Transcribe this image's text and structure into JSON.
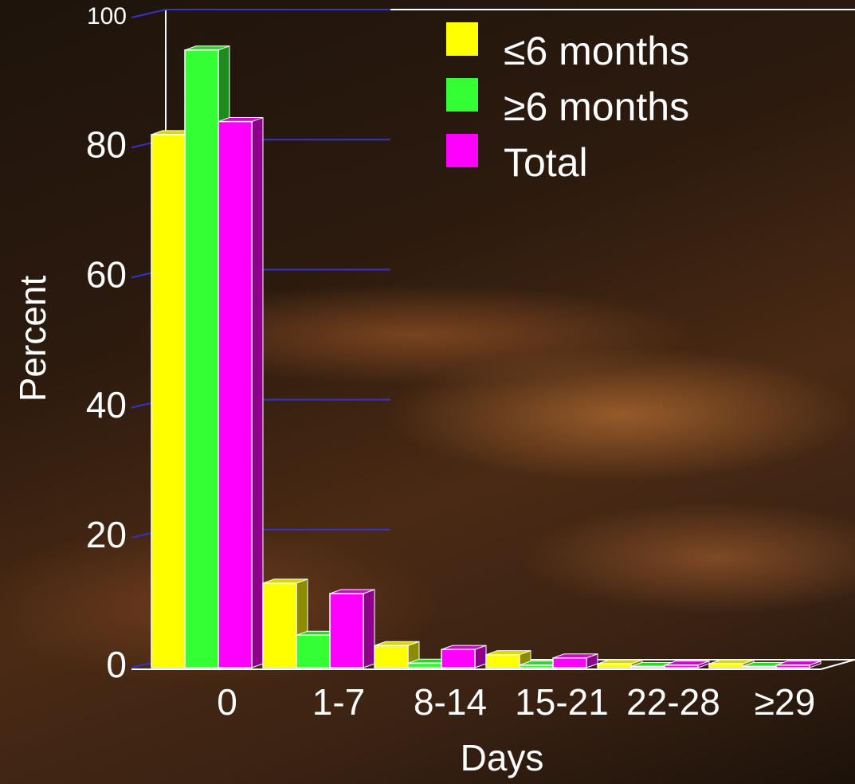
{
  "chart_data": {
    "type": "bar3d",
    "x_label": "Days",
    "y_label": "Percent",
    "categories": [
      "0",
      "1-7",
      "8-14",
      "15-21",
      "22-28",
      "≥29"
    ],
    "series": [
      {
        "name": "≤6 months",
        "color": "#ffff00",
        "values": [
          82,
          13,
          3.4,
          2,
          0.6,
          0.6
        ]
      },
      {
        "name": "≥6 months",
        "color": "#33ff33",
        "values": [
          95,
          5,
          0.7,
          0.4,
          0.2,
          0.2
        ]
      },
      {
        "name": "Total",
        "color": "#ff00ff",
        "values": [
          84,
          11.4,
          2.8,
          1.5,
          0.4,
          0.4
        ]
      }
    ],
    "ylim": [
      0,
      100
    ],
    "yticks": [
      0,
      20,
      40,
      60,
      80,
      100
    ],
    "grid": true
  }
}
